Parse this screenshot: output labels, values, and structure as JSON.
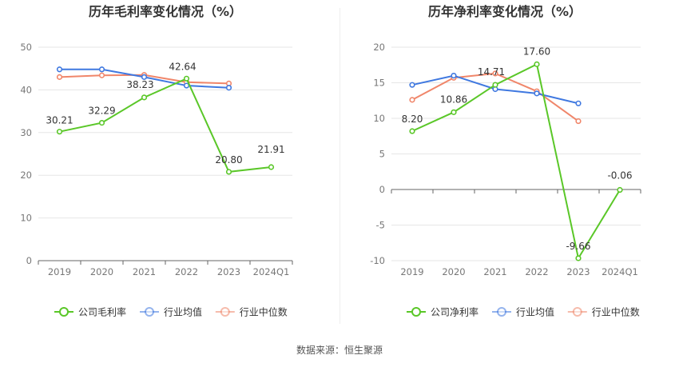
{
  "source_label": "数据来源：恒生聚源",
  "chart_data": [
    {
      "type": "line",
      "title": "历年毛利率变化情况（%）",
      "xlabel": "",
      "ylabel": "",
      "categories": [
        "2019",
        "2020",
        "2021",
        "2022",
        "2023",
        "2024Q1"
      ],
      "ylim": [
        0,
        50
      ],
      "yticks": [
        0,
        10,
        20,
        30,
        40,
        50
      ],
      "grid": true,
      "legend_position": "bottom",
      "series": [
        {
          "name": "公司毛利率",
          "color": "#5ac728",
          "values": [
            30.21,
            32.29,
            38.23,
            42.64,
            20.8,
            21.91
          ],
          "labels": [
            "30.21",
            "32.29",
            "38.23",
            "42.64",
            "20.80",
            "21.91"
          ]
        },
        {
          "name": "行业均值",
          "color": "#3f78e0",
          "values": [
            44.8,
            44.8,
            43.0,
            41.0,
            40.5,
            null
          ]
        },
        {
          "name": "行业中位数",
          "color": "#f0866a",
          "values": [
            43.0,
            43.4,
            43.5,
            41.8,
            41.5,
            null
          ]
        }
      ]
    },
    {
      "type": "line",
      "title": "历年净利率变化情况（%）",
      "xlabel": "",
      "ylabel": "",
      "categories": [
        "2019",
        "2020",
        "2021",
        "2022",
        "2023",
        "2024Q1"
      ],
      "ylim": [
        -10,
        20
      ],
      "yticks": [
        -10,
        -5,
        0,
        5,
        10,
        15,
        20
      ],
      "grid": true,
      "legend_position": "bottom",
      "series": [
        {
          "name": "公司净利率",
          "color": "#5ac728",
          "values": [
            8.2,
            10.86,
            14.71,
            17.6,
            -9.66,
            -0.06
          ],
          "labels": [
            "8.20",
            "10.86",
            "14.71",
            "17.60",
            "-9.66",
            "-0.06"
          ]
        },
        {
          "name": "行业均值",
          "color": "#3f78e0",
          "values": [
            14.7,
            16.0,
            14.1,
            13.5,
            12.1,
            null
          ]
        },
        {
          "name": "行业中位数",
          "color": "#f0866a",
          "values": [
            12.6,
            15.7,
            16.3,
            13.8,
            9.6,
            null
          ]
        }
      ]
    }
  ]
}
